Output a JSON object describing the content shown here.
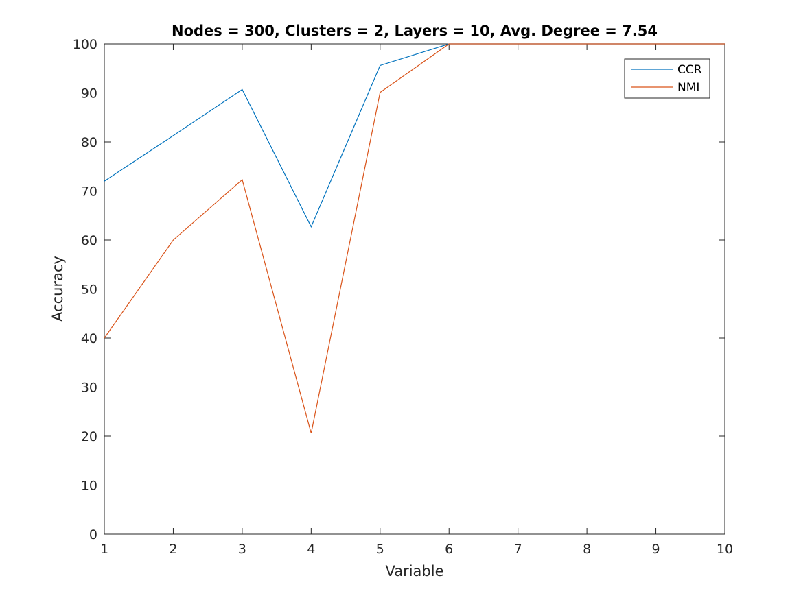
{
  "chart_data": {
    "type": "line",
    "title": "Nodes = 300, Clusters = 2, Layers = 10, Avg. Degree = 7.54",
    "xlabel": "Variable",
    "ylabel": "Accuracy",
    "x": [
      1,
      2,
      3,
      4,
      5,
      6,
      7,
      8,
      9,
      10
    ],
    "xlim": [
      1,
      10
    ],
    "ylim": [
      0,
      100
    ],
    "xticks": [
      1,
      2,
      3,
      4,
      5,
      6,
      7,
      8,
      9,
      10
    ],
    "yticks": [
      0,
      10,
      20,
      30,
      40,
      50,
      60,
      70,
      80,
      90,
      100
    ],
    "grid": false,
    "legend_position": "top-right",
    "series": [
      {
        "name": "CCR",
        "color": "#0072BD",
        "values": [
          72,
          81.3,
          90.7,
          62.7,
          95.6,
          100,
          100,
          100,
          100,
          100
        ]
      },
      {
        "name": "NMI",
        "color": "#D95319",
        "values": [
          40,
          60,
          72.3,
          20.6,
          90.1,
          100,
          100,
          100,
          100,
          100
        ]
      }
    ]
  }
}
